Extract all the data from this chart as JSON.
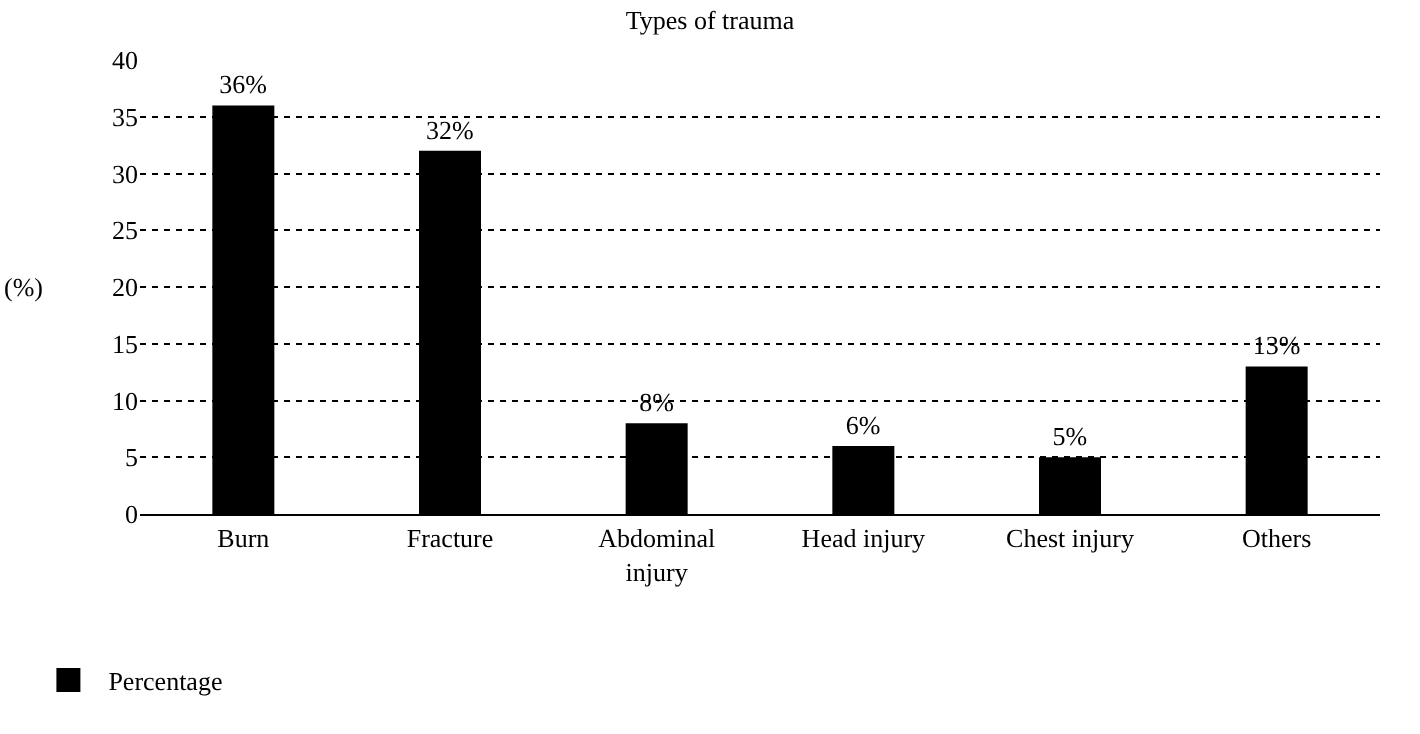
{
  "chart_data": {
    "type": "bar",
    "title": "Types of trauma",
    "ylabel": "(%)",
    "categories": [
      "Burn",
      "Fracture",
      "Abdominal injury",
      "Head injury",
      "Chest injury",
      "Others"
    ],
    "series": [
      {
        "name": "Percentage",
        "color": "#000000",
        "values": [
          36,
          32,
          8,
          6,
          5,
          13
        ],
        "value_labels": [
          "36%",
          "32%",
          "8%",
          "6%",
          "5%",
          "13%"
        ]
      }
    ],
    "ylim": [
      0,
      40
    ],
    "yticks": [
      0,
      5,
      10,
      15,
      20,
      25,
      30,
      35,
      40
    ],
    "grid": "y",
    "legend": "bottom left"
  }
}
